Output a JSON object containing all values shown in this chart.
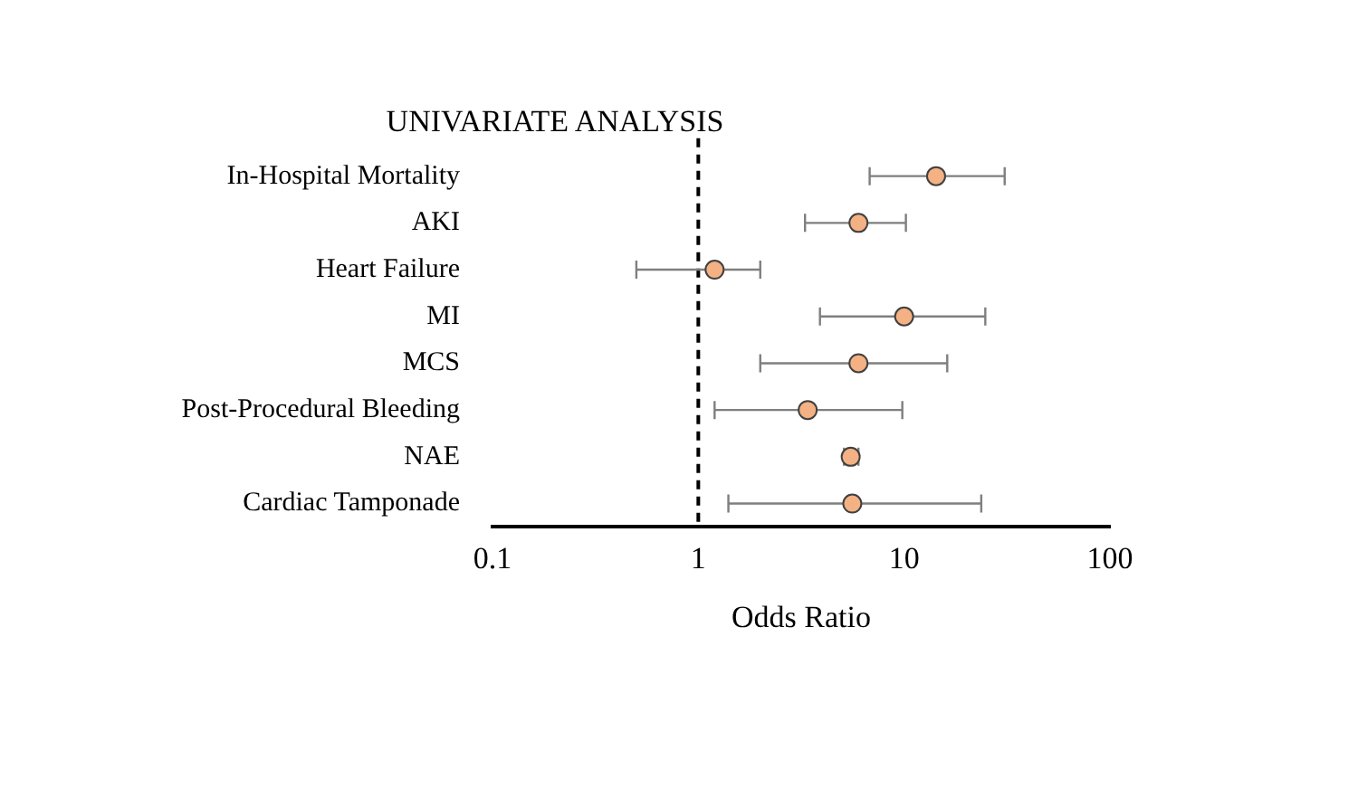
{
  "chart_data": {
    "type": "scatter",
    "orientation": "horizontal",
    "title": "UNIVARIATE ANALYSIS",
    "xlabel": "Odds Ratio",
    "categories": [
      "In-Hospital Mortality",
      "AKI",
      "Heart Failure",
      "MI",
      "MCS",
      "Post-Procedural Bleeding",
      "NAE",
      "Cardiac Tamponade"
    ],
    "values": [
      14.3,
      6.0,
      1.2,
      10,
      6.0,
      3.4,
      5.5,
      5.6
    ],
    "errors": [
      [
        6.8,
        30.8
      ],
      [
        3.3,
        10.2
      ],
      [
        0.5,
        2.0
      ],
      [
        3.9,
        24.8
      ],
      [
        2.0,
        16.2
      ],
      [
        1.2,
        9.8
      ],
      [
        5.1,
        6.0
      ],
      [
        1.4,
        23.7
      ]
    ],
    "color": "#f4b183",
    "marker": "circle",
    "log": "x",
    "xlim": [
      0.1,
      100
    ],
    "xticks": [
      0.1,
      1,
      10,
      100
    ],
    "ref_lines": [
      {
        "axis": "x",
        "value": 1,
        "line_style": "dashed",
        "color": "#000000"
      }
    ]
  }
}
